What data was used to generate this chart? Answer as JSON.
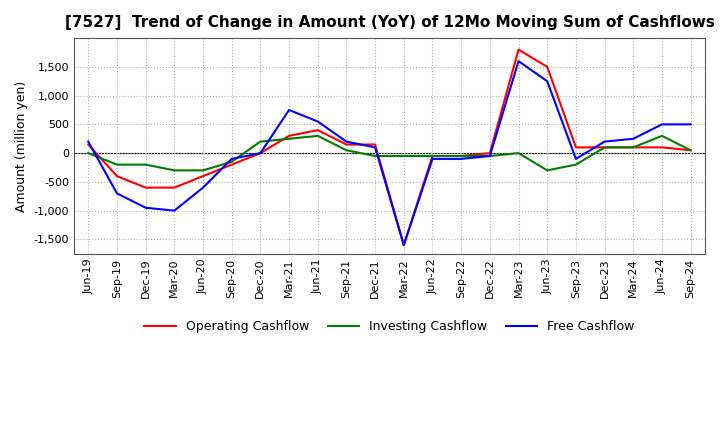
{
  "title": "[7527]  Trend of Change in Amount (YoY) of 12Mo Moving Sum of Cashflows",
  "ylabel": "Amount (million yen)",
  "x_labels": [
    "Jun-19",
    "Sep-19",
    "Dec-19",
    "Mar-20",
    "Jun-20",
    "Sep-20",
    "Dec-20",
    "Mar-21",
    "Jun-21",
    "Sep-21",
    "Dec-21",
    "Mar-22",
    "Jun-22",
    "Sep-22",
    "Dec-22",
    "Mar-23",
    "Jun-23",
    "Sep-23",
    "Dec-23",
    "Mar-24",
    "Jun-24",
    "Sep-24"
  ],
  "operating_cashflow": [
    150,
    -400,
    -600,
    -600,
    -400,
    -200,
    0,
    300,
    400,
    150,
    150,
    -1600,
    -50,
    -50,
    0,
    1800,
    1500,
    100,
    100,
    100,
    100,
    50
  ],
  "investing_cashflow": [
    0,
    -200,
    -200,
    -300,
    -300,
    -150,
    200,
    250,
    300,
    50,
    -50,
    -50,
    -50,
    -50,
    -50,
    0,
    -300,
    -200,
    100,
    100,
    300,
    50
  ],
  "free_cashflow": [
    200,
    -700,
    -950,
    -1000,
    -600,
    -100,
    0,
    750,
    550,
    200,
    100,
    -1600,
    -100,
    -100,
    -50,
    1600,
    1250,
    -100,
    200,
    250,
    500,
    500
  ],
  "ylim": [
    -1750,
    2000
  ],
  "yticks": [
    -1500,
    -1000,
    -500,
    0,
    500,
    1000,
    1500
  ],
  "operating_color": "#ff0000",
  "investing_color": "#008000",
  "free_color": "#0000ff",
  "background_color": "#ffffff",
  "grid_color": "#b0b0b0",
  "title_fontsize": 11,
  "tick_fontsize": 8,
  "ylabel_fontsize": 9,
  "legend_labels": [
    "Operating Cashflow",
    "Investing Cashflow",
    "Free Cashflow"
  ],
  "linewidth": 1.5
}
